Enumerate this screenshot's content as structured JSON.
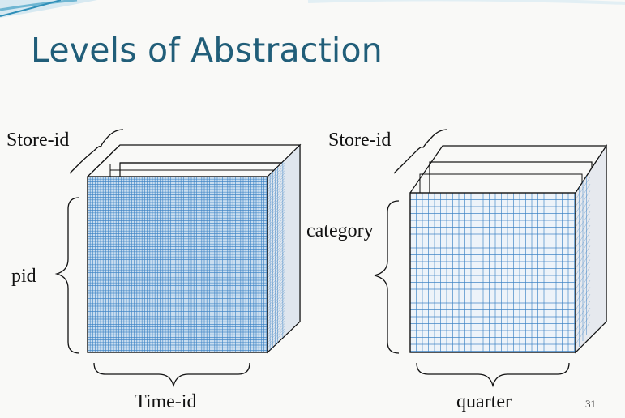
{
  "slide": {
    "title": "Levels of Abstraction",
    "page_number": "31"
  },
  "left_cube": {
    "top_label": "Store-id",
    "side_label": "pid",
    "bottom_label": "Time-id"
  },
  "right_cube": {
    "top_label": "Store-id",
    "side_label": "category",
    "bottom_label": "quarter"
  },
  "colors": {
    "title": "#215e79",
    "grid_line": "#3b82c4",
    "grid_fill": "#c9ddef",
    "outline": "#111111",
    "accent_top": "#2f6f8f"
  }
}
